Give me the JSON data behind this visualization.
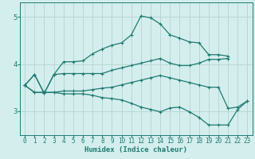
{
  "xlabel": "Humidex (Indice chaleur)",
  "xlim": [
    -0.5,
    23.5
  ],
  "ylim": [
    2.5,
    5.3
  ],
  "yticks": [
    3,
    4,
    5
  ],
  "xticks": [
    0,
    1,
    2,
    3,
    4,
    5,
    6,
    7,
    8,
    9,
    10,
    11,
    12,
    13,
    14,
    15,
    16,
    17,
    18,
    19,
    20,
    21,
    22,
    23
  ],
  "bg_color": "#d4eeed",
  "plot_bg_color": "#d4eeed",
  "line_color": "#1e7b70",
  "grid_color": "#b8d8d4",
  "lines": [
    {
      "x": [
        0,
        1,
        2,
        3,
        4,
        5,
        6,
        7,
        8,
        9,
        10,
        11,
        12,
        13,
        14,
        15,
        16,
        17,
        18,
        19,
        20,
        21
      ],
      "y": [
        3.55,
        3.78,
        3.38,
        3.78,
        4.05,
        4.05,
        4.07,
        4.22,
        4.32,
        4.4,
        4.45,
        4.62,
        5.02,
        4.98,
        4.85,
        4.62,
        4.55,
        4.47,
        4.45,
        4.2,
        4.2,
        4.17
      ]
    },
    {
      "x": [
        0,
        1,
        2,
        3,
        4,
        5,
        6,
        7,
        8,
        9,
        10,
        11,
        12,
        13,
        14,
        15,
        16,
        17,
        18,
        19,
        20,
        21
      ],
      "y": [
        3.55,
        3.78,
        3.38,
        3.78,
        3.8,
        3.8,
        3.8,
        3.8,
        3.8,
        3.87,
        3.92,
        3.97,
        4.02,
        4.07,
        4.12,
        4.02,
        3.97,
        3.97,
        4.02,
        4.1,
        4.1,
        4.12
      ]
    },
    {
      "x": [
        0,
        1,
        2,
        3,
        4,
        5,
        6,
        7,
        8,
        9,
        10,
        11,
        12,
        13,
        14,
        15,
        16,
        17,
        18,
        19,
        20,
        21,
        22,
        23
      ],
      "y": [
        3.55,
        3.4,
        3.4,
        3.4,
        3.43,
        3.43,
        3.43,
        3.46,
        3.49,
        3.51,
        3.56,
        3.61,
        3.66,
        3.71,
        3.76,
        3.71,
        3.66,
        3.61,
        3.56,
        3.51,
        3.51,
        3.06,
        3.09,
        3.22
      ]
    },
    {
      "x": [
        0,
        1,
        2,
        3,
        4,
        5,
        6,
        7,
        8,
        9,
        10,
        11,
        12,
        13,
        14,
        15,
        16,
        17,
        18,
        19,
        20,
        21,
        22,
        23
      ],
      "y": [
        3.55,
        3.4,
        3.4,
        3.4,
        3.37,
        3.37,
        3.37,
        3.34,
        3.29,
        3.27,
        3.24,
        3.17,
        3.09,
        3.04,
        2.99,
        3.07,
        3.09,
        2.99,
        2.87,
        2.71,
        2.71,
        2.71,
        3.04,
        3.22
      ]
    }
  ],
  "tick_fontsize": 5.5,
  "xlabel_fontsize": 6.5,
  "xlabel_color": "#1e7b70"
}
